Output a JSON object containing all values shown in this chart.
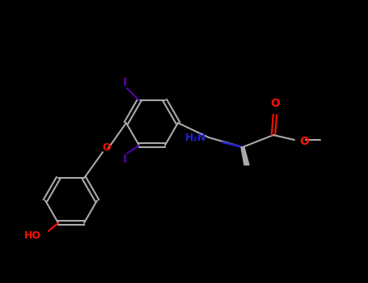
{
  "background": "#000000",
  "bond_color": "#aaaaaa",
  "bond_width": 1.5,
  "iodine_color": "#5500aa",
  "oxygen_color": "#ff1100",
  "nitrogen_color": "#2222cc",
  "figsize": [
    4.55,
    3.5
  ],
  "dpi": 100,
  "ring_r": 32,
  "ring_A": [
    88,
    255
  ],
  "ring_B": [
    185,
    155
  ]
}
